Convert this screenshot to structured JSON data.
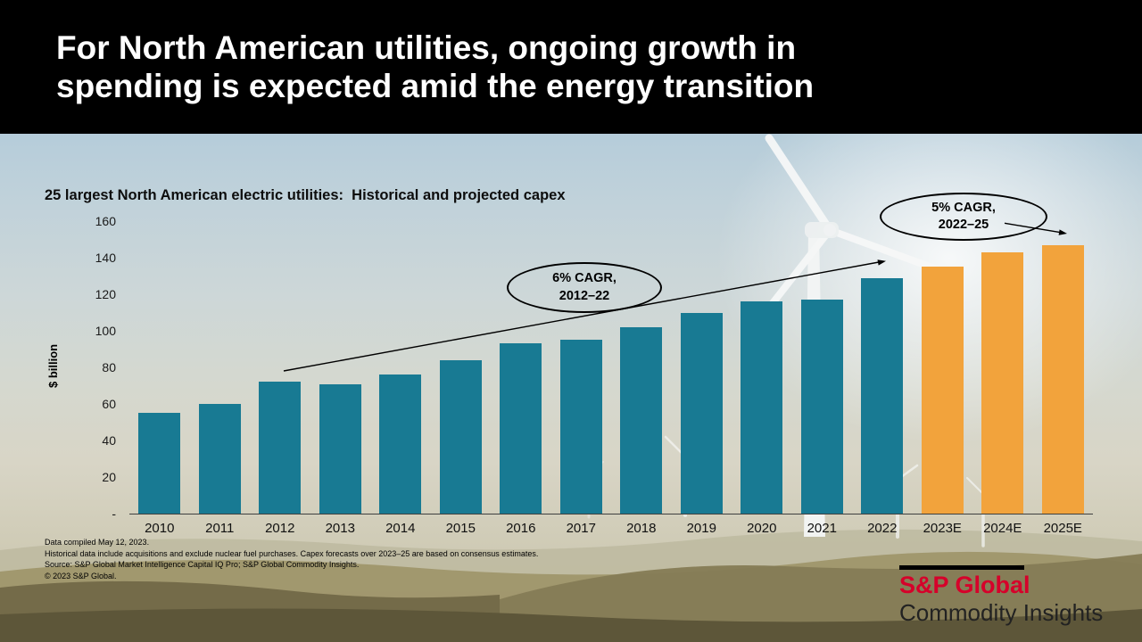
{
  "header": {
    "title_lines": [
      "For North American utilities, ongoing growth in",
      "spending is expected amid the energy transition"
    ]
  },
  "chart_data": {
    "type": "bar",
    "title": "25 largest North American electric utilities:  Historical and projected capex",
    "ylabel": "$ billion",
    "ylim": [
      0,
      160
    ],
    "ytick_interval": 20,
    "ytick_labels": [
      "160",
      "140",
      "120",
      "100",
      "80",
      "60",
      "40",
      "20",
      "-"
    ],
    "grid": false,
    "legend_position": "none",
    "categories": [
      "2010",
      "2011",
      "2012",
      "2013",
      "2014",
      "2015",
      "2016",
      "2017",
      "2018",
      "2019",
      "2020",
      "2021",
      "2022",
      "2023E",
      "2024E",
      "2025E"
    ],
    "values": [
      55,
      60,
      72,
      71,
      76,
      84,
      93,
      95,
      102,
      110,
      116,
      117,
      129,
      135,
      143,
      147
    ],
    "projected_start_index": 13,
    "colors": {
      "historical": "#187a93",
      "projected": "#f2a33c"
    },
    "annotations": [
      {
        "line1": "6% CAGR,",
        "line2": "2012–22",
        "arrow_from": "2012",
        "arrow_to": "2022"
      },
      {
        "line1": "5% CAGR,",
        "line2": "2022–25",
        "arrow_to": "2025E"
      }
    ]
  },
  "footnotes": [
    "Data compiled May 12, 2023.",
    "Historical data include acquisitions and exclude nuclear fuel purchases. Capex forecasts over 2023–25 are based on consensus estimates.",
    "Source: S&P Global Market Intelligence Capital IQ Pro; S&P  Global Commodity Insights.",
    "© 2023 S&P Global."
  ],
  "logo": {
    "brand": "S&P Global",
    "division": "Commodity Insights",
    "brand_color": "#d6002a"
  }
}
